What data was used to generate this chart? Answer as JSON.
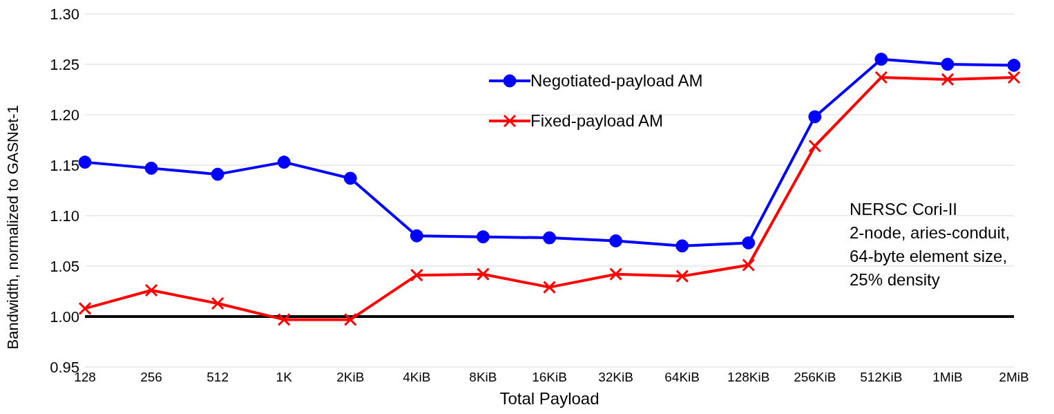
{
  "chart_data": {
    "type": "line",
    "xlabel": "Total Payload",
    "ylabel": "Bandwidth, normalized to GASNet-1",
    "categories": [
      "128",
      "256",
      "512",
      "1K",
      "2KiB",
      "4KiB",
      "8KiB",
      "16KiB",
      "32KiB",
      "64KiB",
      "128KiB",
      "256KiB",
      "512KiB",
      "1MiB",
      "2MiB"
    ],
    "series": [
      {
        "name": "Negotiated-payload AM",
        "color": "#0000ff",
        "marker": "circle",
        "values": [
          1.153,
          1.147,
          1.141,
          1.153,
          1.137,
          1.08,
          1.079,
          1.078,
          1.075,
          1.07,
          1.073,
          1.198,
          1.255,
          1.25,
          1.249
        ]
      },
      {
        "name": "Fixed-payload AM",
        "color": "#ff0000",
        "marker": "cross",
        "values": [
          1.008,
          1.026,
          1.013,
          0.997,
          0.997,
          1.041,
          1.042,
          1.029,
          1.042,
          1.04,
          1.051,
          1.169,
          1.237,
          1.235,
          1.237
        ]
      }
    ],
    "ylim": [
      0.95,
      1.3
    ],
    "yticks": [
      0.95,
      {
        "value": 1.0,
        "label": "1.00"
      },
      1.05,
      {
        "value": 1.1,
        "label": "1.10"
      },
      1.15,
      {
        "value": 1.2,
        "label": "1.20"
      },
      1.25,
      {
        "value": 1.3,
        "label": "1.30"
      }
    ],
    "grid": "y",
    "legend": "top",
    "ref_lines": [
      {
        "axis": "y",
        "value": 1.0,
        "color": "#000000"
      }
    ],
    "annotations": [
      "NERSC Cori-II",
      "2-node, aries-conduit,",
      "64-byte element size,",
      "25% density"
    ]
  }
}
